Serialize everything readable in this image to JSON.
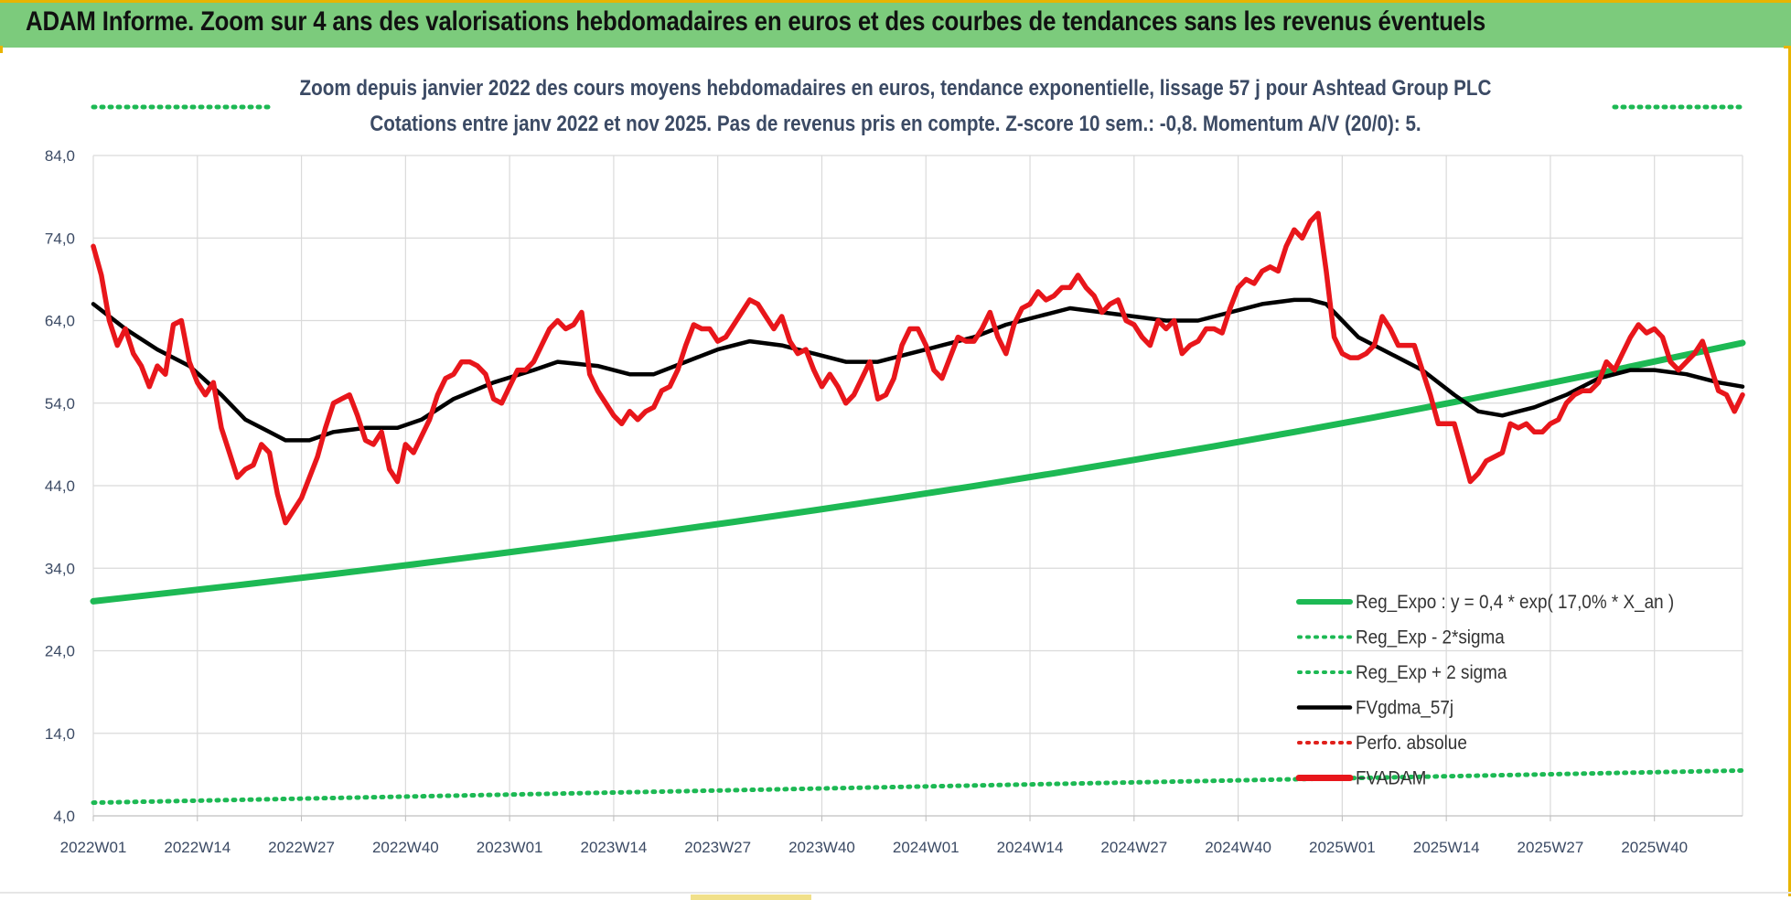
{
  "header": {
    "title": "ADAM Informe. Zoom sur 4 ans des valorisations hebdomadaires en euros et des courbes de tendances sans les revenus éventuels"
  },
  "chart_data": {
    "type": "line",
    "subtitle_line1": "Zoom depuis janvier 2022 des cours moyens hebdomadaires en euros, tendance exponentielle, lissage 57 j pour Ashtead Group PLC",
    "subtitle_line2": "Cotations entre janv 2022 et nov 2025. Pas de revenus pris en compte. Z-score 10 sem.: -0,8. Momentum A/V (20/0): 5.",
    "ylim": [
      4,
      84
    ],
    "y_ticks": [
      "84,0",
      "74,0",
      "64,0",
      "54,0",
      "44,0",
      "34,0",
      "24,0",
      "14,0",
      "4,0"
    ],
    "y_tick_values": [
      84,
      74,
      64,
      54,
      44,
      34,
      24,
      14,
      4
    ],
    "x_range": [
      0,
      205
    ],
    "x_ticks": [
      "2022W01",
      "2022W14",
      "2022W27",
      "2022W40",
      "2023W01",
      "2023W14",
      "2023W27",
      "2023W40",
      "2024W01",
      "2024W14",
      "2024W27",
      "2024W40",
      "2025W01",
      "2025W14",
      "2025W27",
      "2025W40"
    ],
    "x_tick_values": [
      0,
      13,
      26,
      39,
      52,
      65,
      78,
      91,
      104,
      117,
      130,
      143,
      156,
      169,
      182,
      195
    ],
    "legend": [
      {
        "label": "Reg_Expo : y = 0,4 * exp( 17,0% *  X_an )",
        "color": "#1db954",
        "style": "solid"
      },
      {
        "label": "Reg_Exp - 2*sigma",
        "color": "#1db954",
        "style": "dotted"
      },
      {
        "label": "Reg_Exp + 2 sigma",
        "color": "#1db954",
        "style": "dotted"
      },
      {
        "label": "FVgdma_57j",
        "color": "#000000",
        "style": "solid"
      },
      {
        "label": "Perfo. absolue",
        "color": "#e0201b",
        "style": "dotted"
      },
      {
        "label": "FVADAM",
        "color": "#e8161b",
        "style": "solid"
      }
    ],
    "series": [
      {
        "name": "FVADAM",
        "color": "#e8161b",
        "points": [
          [
            0,
            73
          ],
          [
            1,
            69.5
          ],
          [
            2,
            64
          ],
          [
            3,
            61
          ],
          [
            4,
            63
          ],
          [
            5,
            60
          ],
          [
            6,
            58.5
          ],
          [
            7,
            56
          ],
          [
            8,
            58.5
          ],
          [
            9,
            57.5
          ],
          [
            10,
            63.5
          ],
          [
            11,
            64
          ],
          [
            12,
            59
          ],
          [
            13,
            56.5
          ],
          [
            14,
            55
          ],
          [
            15,
            56.5
          ],
          [
            16,
            51
          ],
          [
            17,
            48
          ],
          [
            18,
            45
          ],
          [
            19,
            46
          ],
          [
            20,
            46.5
          ],
          [
            21,
            49
          ],
          [
            22,
            48
          ],
          [
            23,
            43
          ],
          [
            24,
            39.5
          ],
          [
            25,
            41
          ],
          [
            26,
            42.5
          ],
          [
            27,
            45
          ],
          [
            28,
            47.5
          ],
          [
            29,
            51
          ],
          [
            30,
            54
          ],
          [
            31,
            54.5
          ],
          [
            32,
            55
          ],
          [
            33,
            52.5
          ],
          [
            34,
            49.5
          ],
          [
            35,
            49
          ],
          [
            36,
            50.5
          ],
          [
            37,
            46
          ],
          [
            38,
            44.5
          ],
          [
            39,
            49
          ],
          [
            40,
            48
          ],
          [
            41,
            50
          ],
          [
            42,
            52
          ],
          [
            43,
            55
          ],
          [
            44,
            57
          ],
          [
            45,
            57.5
          ],
          [
            46,
            59
          ],
          [
            47,
            59
          ],
          [
            48,
            58.5
          ],
          [
            49,
            57.5
          ],
          [
            50,
            54.5
          ],
          [
            51,
            54
          ],
          [
            52,
            56
          ],
          [
            53,
            58
          ],
          [
            54,
            58
          ],
          [
            55,
            59
          ],
          [
            56,
            61
          ],
          [
            57,
            63
          ],
          [
            58,
            64
          ],
          [
            59,
            63
          ],
          [
            60,
            63.5
          ],
          [
            61,
            65
          ],
          [
            62,
            57.5
          ],
          [
            63,
            55.5
          ],
          [
            64,
            54
          ],
          [
            65,
            52.5
          ],
          [
            66,
            51.5
          ],
          [
            67,
            53
          ],
          [
            68,
            52
          ],
          [
            69,
            53
          ],
          [
            70,
            53.5
          ],
          [
            71,
            55.5
          ],
          [
            72,
            56
          ],
          [
            73,
            58
          ],
          [
            74,
            61
          ],
          [
            75,
            63.5
          ],
          [
            76,
            63
          ],
          [
            77,
            63
          ],
          [
            78,
            61.5
          ],
          [
            79,
            62
          ],
          [
            80,
            63.5
          ],
          [
            81,
            65
          ],
          [
            82,
            66.5
          ],
          [
            83,
            66
          ],
          [
            84,
            64.5
          ],
          [
            85,
            63
          ],
          [
            86,
            64.5
          ],
          [
            87,
            61.5
          ],
          [
            88,
            60
          ],
          [
            89,
            60.5
          ],
          [
            90,
            58
          ],
          [
            91,
            56
          ],
          [
            92,
            57.5
          ],
          [
            93,
            56
          ],
          [
            94,
            54
          ],
          [
            95,
            55
          ],
          [
            96,
            57
          ],
          [
            97,
            59
          ],
          [
            98,
            54.5
          ],
          [
            99,
            55
          ],
          [
            100,
            57
          ],
          [
            101,
            61
          ],
          [
            102,
            63
          ],
          [
            103,
            63
          ],
          [
            104,
            61
          ],
          [
            105,
            58
          ],
          [
            106,
            57
          ],
          [
            107,
            59.5
          ],
          [
            108,
            62
          ],
          [
            109,
            61.5
          ],
          [
            110,
            61.5
          ],
          [
            111,
            63
          ],
          [
            112,
            65
          ],
          [
            113,
            62
          ],
          [
            114,
            60
          ],
          [
            115,
            63.5
          ],
          [
            116,
            65.5
          ],
          [
            117,
            66
          ],
          [
            118,
            67.5
          ],
          [
            119,
            66.5
          ],
          [
            120,
            67
          ],
          [
            121,
            68
          ],
          [
            122,
            68
          ],
          [
            123,
            69.5
          ],
          [
            124,
            68
          ],
          [
            125,
            67
          ],
          [
            126,
            65
          ],
          [
            127,
            66
          ],
          [
            128,
            66.5
          ],
          [
            129,
            64
          ],
          [
            130,
            63.5
          ],
          [
            131,
            62
          ],
          [
            132,
            61
          ],
          [
            133,
            64
          ],
          [
            134,
            63
          ],
          [
            135,
            64
          ],
          [
            136,
            60
          ],
          [
            137,
            61
          ],
          [
            138,
            61.5
          ],
          [
            139,
            63
          ],
          [
            140,
            63
          ],
          [
            141,
            62.5
          ],
          [
            142,
            65.5
          ],
          [
            143,
            68
          ],
          [
            144,
            69
          ],
          [
            145,
            68.5
          ],
          [
            146,
            70
          ],
          [
            147,
            70.5
          ],
          [
            148,
            70
          ],
          [
            149,
            73
          ],
          [
            150,
            75
          ],
          [
            151,
            74
          ],
          [
            152,
            76
          ],
          [
            153,
            77
          ],
          [
            154,
            70
          ],
          [
            155,
            62
          ],
          [
            156,
            60
          ],
          [
            157,
            59.5
          ],
          [
            158,
            59.5
          ],
          [
            159,
            60
          ],
          [
            160,
            61
          ],
          [
            161,
            64.5
          ],
          [
            162,
            63
          ],
          [
            163,
            61
          ],
          [
            164,
            61
          ],
          [
            165,
            61
          ],
          [
            166,
            58
          ],
          [
            167,
            55
          ],
          [
            168,
            51.5
          ],
          [
            169,
            51.5
          ],
          [
            170,
            51.5
          ],
          [
            171,
            48
          ],
          [
            172,
            44.5
          ],
          [
            173,
            45.5
          ],
          [
            174,
            47
          ],
          [
            175,
            47.5
          ],
          [
            176,
            48
          ],
          [
            177,
            51.5
          ],
          [
            178,
            51
          ],
          [
            179,
            51.5
          ],
          [
            180,
            50.5
          ],
          [
            181,
            50.5
          ],
          [
            182,
            51.5
          ],
          [
            183,
            52
          ],
          [
            184,
            54
          ],
          [
            185,
            55
          ],
          [
            186,
            55.5
          ],
          [
            187,
            55.5
          ],
          [
            188,
            56.5
          ],
          [
            189,
            59
          ],
          [
            190,
            58
          ],
          [
            191,
            60
          ],
          [
            192,
            62
          ],
          [
            193,
            63.5
          ],
          [
            194,
            62.5
          ],
          [
            195,
            63
          ],
          [
            196,
            62
          ],
          [
            197,
            59
          ],
          [
            198,
            58
          ],
          [
            199,
            59
          ],
          [
            200,
            60
          ],
          [
            201,
            61.5
          ],
          [
            202,
            58.5
          ],
          [
            203,
            55.5
          ],
          [
            204,
            55
          ],
          [
            205,
            53
          ],
          [
            206,
            55
          ]
        ]
      },
      {
        "name": "FVgdma_57j",
        "color": "#000000",
        "points": [
          [
            0,
            66
          ],
          [
            4,
            63
          ],
          [
            8,
            60.5
          ],
          [
            12,
            58.5
          ],
          [
            16,
            55
          ],
          [
            19,
            52
          ],
          [
            22,
            50.5
          ],
          [
            24,
            49.5
          ],
          [
            27,
            49.5
          ],
          [
            30,
            50.5
          ],
          [
            34,
            51
          ],
          [
            38,
            51
          ],
          [
            41,
            52
          ],
          [
            45,
            54.5
          ],
          [
            50,
            56.5
          ],
          [
            55,
            58
          ],
          [
            58,
            59
          ],
          [
            63,
            58.5
          ],
          [
            67,
            57.5
          ],
          [
            70,
            57.5
          ],
          [
            74,
            59
          ],
          [
            78,
            60.5
          ],
          [
            82,
            61.5
          ],
          [
            86,
            61
          ],
          [
            90,
            60
          ],
          [
            94,
            59
          ],
          [
            98,
            59
          ],
          [
            102,
            60
          ],
          [
            106,
            61
          ],
          [
            110,
            62
          ],
          [
            114,
            63.5
          ],
          [
            118,
            64.5
          ],
          [
            122,
            65.5
          ],
          [
            126,
            65
          ],
          [
            130,
            64.5
          ],
          [
            134,
            64
          ],
          [
            138,
            64
          ],
          [
            142,
            65
          ],
          [
            146,
            66
          ],
          [
            150,
            66.5
          ],
          [
            152,
            66.5
          ],
          [
            154,
            66
          ],
          [
            156,
            64
          ],
          [
            158,
            62
          ],
          [
            162,
            60
          ],
          [
            166,
            58
          ],
          [
            170,
            55
          ],
          [
            173,
            53
          ],
          [
            176,
            52.5
          ],
          [
            180,
            53.5
          ],
          [
            184,
            55
          ],
          [
            188,
            57
          ],
          [
            192,
            58
          ],
          [
            195,
            58
          ],
          [
            199,
            57.5
          ],
          [
            203,
            56.5
          ],
          [
            206,
            56
          ]
        ]
      },
      {
        "name": "Reg_Expo",
        "color": "#1db954",
        "points": [
          [
            0,
            30
          ],
          [
            10,
            31.07
          ],
          [
            20,
            32.16
          ],
          [
            30,
            33.3
          ],
          [
            40,
            34.47
          ],
          [
            50,
            35.69
          ],
          [
            60,
            36.95
          ],
          [
            70,
            38.26
          ],
          [
            80,
            39.61
          ],
          [
            90,
            41.01
          ],
          [
            100,
            42.46
          ],
          [
            110,
            43.96
          ],
          [
            120,
            45.51
          ],
          [
            130,
            47.12
          ],
          [
            140,
            48.78
          ],
          [
            150,
            50.5
          ],
          [
            160,
            52.28
          ],
          [
            170,
            54.13
          ],
          [
            180,
            56.04
          ],
          [
            190,
            58.02
          ],
          [
            200,
            60.07
          ],
          [
            206,
            61.3
          ]
        ]
      },
      {
        "name": "Reg_Exp - 2*sigma",
        "color": "#1db954",
        "points": [
          [
            0,
            5.6
          ],
          [
            206,
            9.5
          ]
        ]
      },
      {
        "name": "Reg_Exp + 2 sigma",
        "color": "#1db954",
        "segments": [
          [
            [
              0,
              89
            ],
            [
              20,
              89
            ]
          ],
          [
            [
              190,
              89
            ],
            [
              206,
              89
            ]
          ]
        ]
      }
    ]
  }
}
